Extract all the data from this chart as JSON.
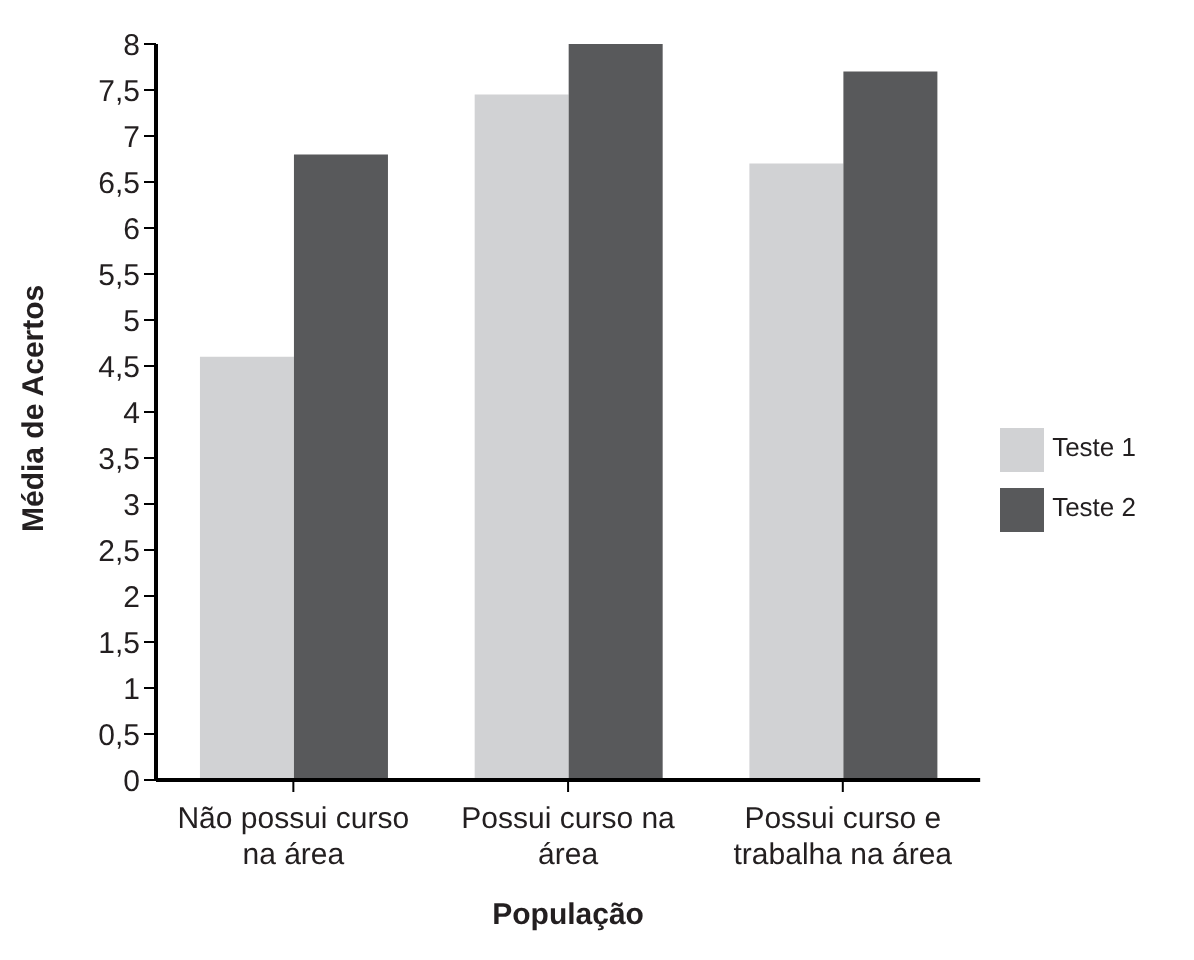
{
  "chart_data": {
    "type": "bar",
    "xlabel": "População",
    "ylabel": "Média de Acertos",
    "categories": [
      "Não possui curso na área",
      "Possui curso na área",
      "Possui curso e trabalha na área"
    ],
    "series": [
      {
        "name": "Teste 1",
        "color": "#d1d2d4",
        "values": [
          4.6,
          7.45,
          6.7
        ]
      },
      {
        "name": "Teste 2",
        "color": "#58595b",
        "values": [
          6.8,
          8,
          7.7
        ]
      }
    ],
    "ylim": [
      0,
      8
    ],
    "yticks": [
      0,
      {
        "value": 0.5,
        "label": "0,5"
      },
      1,
      {
        "value": 1.5,
        "label": "1,5"
      },
      2,
      {
        "value": 2.5,
        "label": "2,5"
      },
      3,
      {
        "value": 3.5,
        "label": "3,5"
      },
      4,
      {
        "value": 4.5,
        "label": "4,5"
      },
      5,
      {
        "value": 5.5,
        "label": "5,5"
      },
      6,
      {
        "value": 6.5,
        "label": "6,5"
      },
      7,
      {
        "value": 7.5,
        "label": "7,5"
      },
      8
    ],
    "grid": false,
    "legend": "right"
  }
}
